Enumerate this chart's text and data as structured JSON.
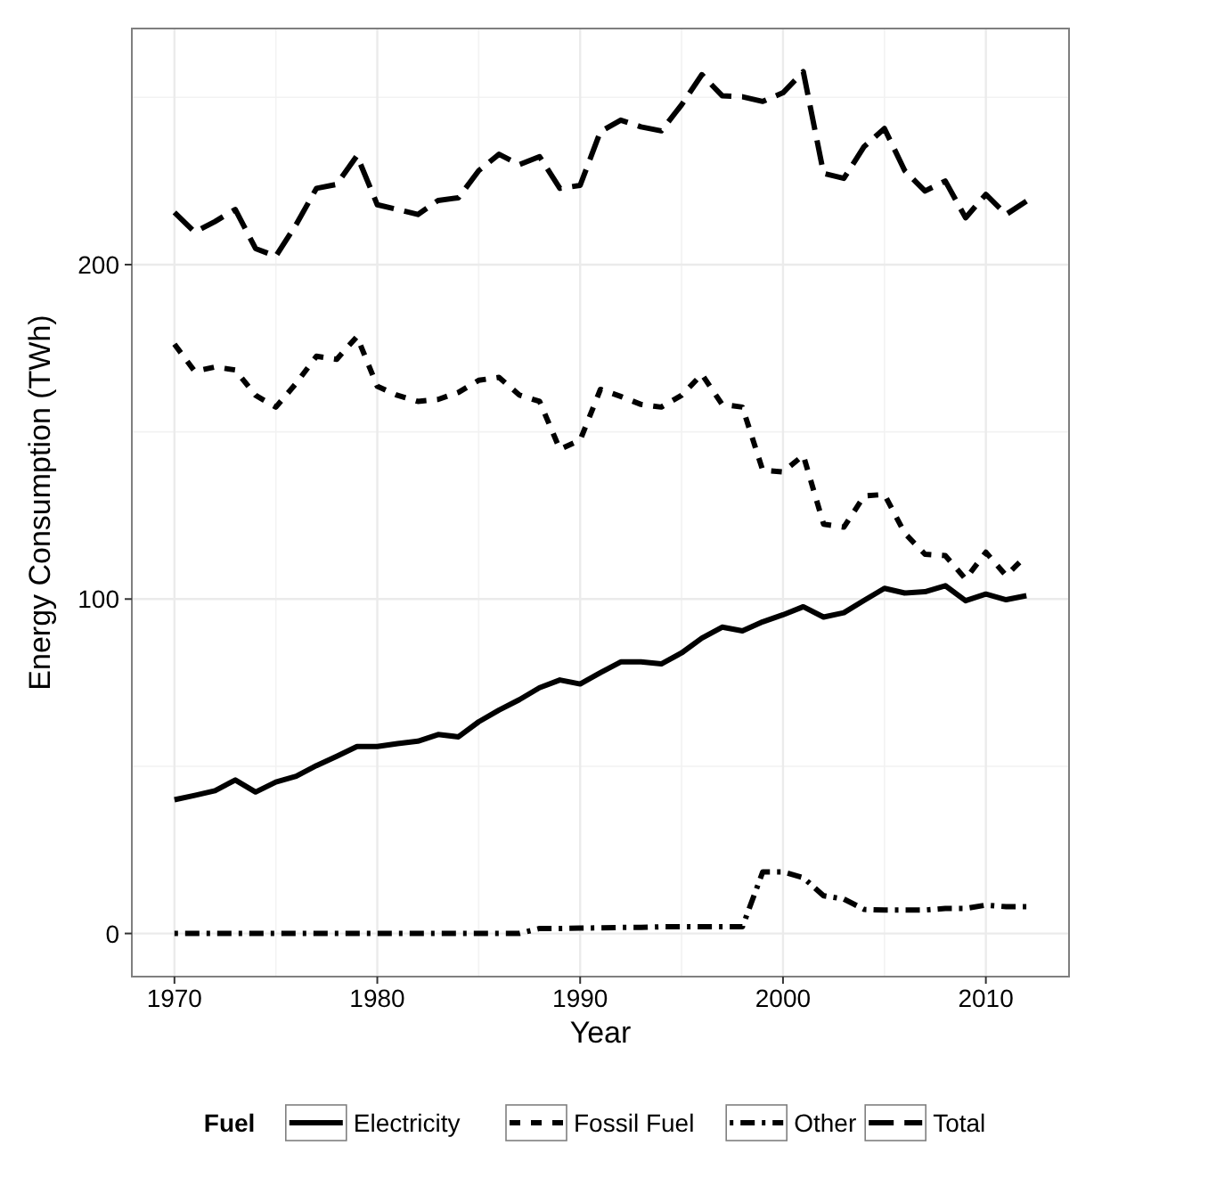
{
  "chart_data": {
    "type": "line",
    "xlabel": "Year",
    "ylabel": "Energy Consumption (TWh)",
    "legend_title": "Fuel",
    "legend": "bottom",
    "grid": true,
    "xlim": [
      1967.9,
      2014.1
    ],
    "xticks": [
      1970,
      1980,
      1990,
      2000,
      2010
    ],
    "ylim": [
      -12.9,
      270.6
    ],
    "yticks": [
      0,
      100,
      200
    ],
    "x": [
      1970,
      1971,
      1972,
      1973,
      1974,
      1975,
      1976,
      1977,
      1978,
      1979,
      1980,
      1981,
      1982,
      1983,
      1984,
      1985,
      1986,
      1987,
      1988,
      1989,
      1990,
      1991,
      1992,
      1993,
      1994,
      1995,
      1996,
      1997,
      1998,
      1999,
      2000,
      2001,
      2002,
      2003,
      2004,
      2005,
      2006,
      2007,
      2008,
      2009,
      2010,
      2011,
      2012
    ],
    "series": [
      {
        "name": "Electricity",
        "color": "#000000",
        "line_style": "solid",
        "values": [
          40,
          41.3,
          42.7,
          45.9,
          42.3,
          45.3,
          47,
          50.2,
          53,
          55.9,
          55.9,
          56.8,
          57.5,
          59.5,
          58.8,
          63.3,
          66.8,
          69.9,
          73.5,
          75.8,
          74.6,
          78,
          81.2,
          81.2,
          80.6,
          83.9,
          88.3,
          91.6,
          90.5,
          93.2,
          95.3,
          97.7,
          94.6,
          95.9,
          99.6,
          103.2,
          101.8,
          102.2,
          104,
          99.5,
          101.5,
          99.8,
          101
        ]
      },
      {
        "name": "Fossil Fuel",
        "color": "#000000",
        "line_style": "dashed",
        "values": [
          176.2,
          168.1,
          169.4,
          168.5,
          160.9,
          157.4,
          164.5,
          172.6,
          171.7,
          178.5,
          163.6,
          160.9,
          159.1,
          159.7,
          161.8,
          165.4,
          166.3,
          161,
          159.1,
          144.8,
          147.5,
          162.7,
          160.6,
          158.2,
          157.4,
          160.9,
          167.2,
          158.2,
          157.4,
          138.5,
          138,
          143,
          122.4,
          121.5,
          130.8,
          131.3,
          119.7,
          113.4,
          113,
          106,
          114,
          107,
          113
        ]
      },
      {
        "name": "Other",
        "color": "#000000",
        "line_style": "dashdot",
        "values": [
          0,
          0,
          0,
          0,
          0,
          0,
          0,
          0,
          0,
          0,
          0,
          0,
          0,
          0,
          0,
          0,
          0,
          0,
          1.5,
          1.5,
          1.6,
          1.7,
          1.8,
          1.8,
          2,
          2,
          2,
          2,
          2,
          18.4,
          18.4,
          16.7,
          11.3,
          10.3,
          7.2,
          7,
          7,
          7,
          7.5,
          7.5,
          8.5,
          8,
          8
        ]
      },
      {
        "name": "Total",
        "color": "#000000",
        "line_style": "longdash",
        "values": [
          215.6,
          209.7,
          212.9,
          216.5,
          204.8,
          202.5,
          212,
          222.8,
          224,
          232.6,
          217.9,
          216.5,
          215,
          219.2,
          220,
          228.1,
          233,
          229.9,
          232.3,
          222.8,
          223.7,
          239.8,
          243.2,
          241.2,
          240,
          247.8,
          256.8,
          250.5,
          250.2,
          248.8,
          251.4,
          257.7,
          227.3,
          225.8,
          235.3,
          240.7,
          228.1,
          222,
          225,
          214,
          221,
          215,
          219
        ]
      }
    ]
  }
}
